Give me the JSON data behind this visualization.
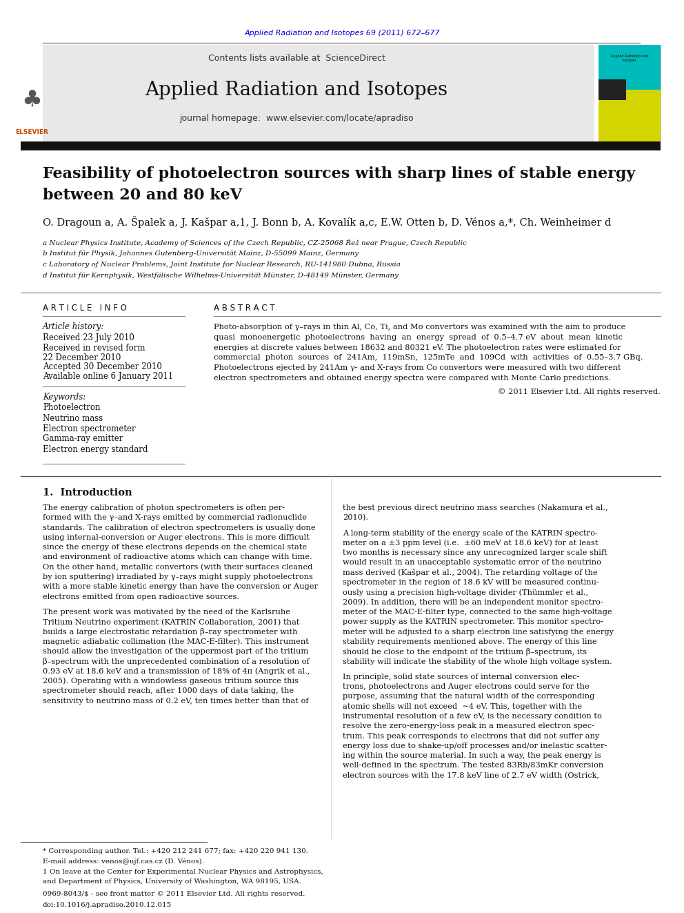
{
  "page_title": "Applied Radiation and Isotopes 69 (2011) 672–677",
  "journal_name": "Applied Radiation and Isotopes",
  "contents_line": "Contents lists available at ScienceDirect",
  "journal_url": "journal homepage: www.elsevier.com/locate/apradiso",
  "article_title_line1": "Feasibility of photoelectron sources with sharp lines of stable energy",
  "article_title_line2": "between 20 and 80 keV",
  "authors_str": "O. Dragoun a, A. Špalek a, J. Kašpar a,1, J. Bonn b, A. Kovalík a,c, E.W. Otten b, D. Vénos a,*, Ch. Weinheimer d",
  "affil_a": "a Nuclear Physics Institute, Academy of Sciences of the Czech Republic, CZ-25068 Řež near Prague, Czech Republic",
  "affil_b": "b Institut für Physik, Johannes Gutenberg-Universität Mainz, D-55099 Mainz, Germany",
  "affil_c": "c Laboratory of Nuclear Problems, Joint Institute for Nuclear Research, RU-141980 Dubna, Russia",
  "affil_d": "d Institut für Kernphysik, Westfälische Wilhelms-Universität Münster, D-48149 Münster, Germany",
  "article_info_header": "A R T I C L E   I N F O",
  "abstract_header": "A B S T R A C T",
  "article_history_label": "Article history:",
  "received1": "Received 23 July 2010",
  "received2": "Received in revised form",
  "received2b": "22 December 2010",
  "accepted": "Accepted 30 December 2010",
  "available": "Available online 6 January 2011",
  "keywords_label": "Keywords:",
  "kw1": "Photoelectron",
  "kw2": "Neutrino mass",
  "kw3": "Electron spectrometer",
  "kw4": "Gamma-ray emitter",
  "kw5": "Electron energy standard",
  "abstract_lines": [
    "Photo-absorption of γ–rays in thin Al, Co, Ti, and Mo convertors was examined with the aim to produce",
    "quasi  monoenergetic  photoelectrons  having  an  energy  spread  of  0.5–4.7 eV  about  mean  kinetic",
    "energies at discrete values between 18632 and 80321 eV. The photoelectron rates were estimated for",
    "commercial  photon  sources  of  241Am,  119mSn,  125mTe  and  109Cd  with  activities  of  0.55–3.7 GBq.",
    "Photoelectrons ejected by 241Am γ- and X-rays from Co convertors were measured with two different",
    "electron spectrometers and obtained energy spectra were compared with Monte Carlo predictions."
  ],
  "copyright": "© 2011 Elsevier Ltd. All rights reserved.",
  "intro_header": "1.  Introduction",
  "intro_left_lines1": [
    "The energy calibration of photon spectrometers is often per-",
    "formed with the γ–and X-rays emitted by commercial radionuclide",
    "standards. The calibration of electron spectrometers is usually done",
    "using internal-conversion or Auger electrons. This is more difficult",
    "since the energy of these electrons depends on the chemical state",
    "and environment of radioactive atoms which can change with time.",
    "On the other hand, metallic convertors (with their surfaces cleaned",
    "by ion sputtering) irradiated by γ–rays might supply photoelectrons",
    "with a more stable kinetic energy than have the conversion or Auger",
    "electrons emitted from open radioactive sources."
  ],
  "intro_left_lines2": [
    "The present work was motivated by the need of the Karlsruhe",
    "Tritium Neutrino experiment (KATRIN Collaboration, 2001) that",
    "builds a large electrostatic retardation β–ray spectrometer with",
    "magnetic adiabatic collimation (the MAC-E-filter). This instrument",
    "should allow the investigation of the uppermost part of the tritium",
    "β–spectrum with the unprecedented combination of a resolution of",
    "0.93 eV at 18.6 keV and a transmission of 18% of 4π (Angrik et al.,",
    "2005). Operating with a windowless gaseous tritium source this",
    "spectrometer should reach, after 1000 days of data taking, the",
    "sensitivity to neutrino mass of 0.2 eV, ten times better than that of"
  ],
  "right_lines1": [
    "the best previous direct neutrino mass searches (Nakamura et al.,",
    "2010)."
  ],
  "right_lines2": [
    "A long-term stability of the energy scale of the KATRIN spectro-",
    "meter on a ±3 ppm level (i.e.  ±60 meV at 18.6 keV) for at least",
    "two months is necessary since any unrecognized larger scale shift",
    "would result in an unacceptable systematic error of the neutrino",
    "mass derived (Kašpar et al., 2004). The retarding voltage of the",
    "spectrometer in the region of 18.6 kV will be measured continu-",
    "ously using a precision high-voltage divider (Thümmler et al.,",
    "2009). In addition, there will be an independent monitor spectro-",
    "meter of the MAC-E-filter type, connected to the same high-voltage",
    "power supply as the KATRIN spectrometer. This monitor spectro-",
    "meter will be adjusted to a sharp electron line satisfying the energy",
    "stability requirements mentioned above. The energy of this line",
    "should be close to the endpoint of the tritium β–spectrum, its",
    "stability will indicate the stability of the whole high voltage system."
  ],
  "right_lines3": [
    "In principle, solid state sources of internal conversion elec-",
    "trons, photoelectrons and Auger electrons could serve for the",
    "purpose, assuming that the natural width of the corresponding",
    "atomic shells will not exceed  ∼4 eV. This, together with the",
    "instrumental resolution of a few eV, is the necessary condition to",
    "resolve the zero-energy-loss peak in a measured electron spec-",
    "trum. This peak corresponds to electrons that did not suffer any",
    "energy loss due to shake-up/off processes and/or inelastic scatter-",
    "ing within the source material. In such a way, the peak energy is",
    "well-defined in the spectrum. The tested 83Rb/83mKr conversion",
    "electron sources with the 17.8 keV line of 2.7 eV width (Ostrick,"
  ],
  "footnote_corresponding": "* Corresponding author. Tel.: +420 212 241 677; fax: +420 220 941 130.",
  "footnote_email": "E-mail address: venos@ujf.cas.cz (D. Vénos).",
  "footnote_1a": "1 On leave at the Center for Experimental Nuclear Physics and Astrophysics,",
  "footnote_1b": "and Department of Physics, University of Washington, WA 98195, USA.",
  "issn_line": "0969-8043/$ - see front matter © 2011 Elsevier Ltd. All rights reserved.",
  "doi_line": "doi:10.1016/j.apradiso.2010.12.015",
  "bg_color": "#ffffff",
  "header_bg": "#e8e8e8",
  "text_color": "#000000",
  "link_color": "#0000cc",
  "dark_bar_color": "#111111"
}
